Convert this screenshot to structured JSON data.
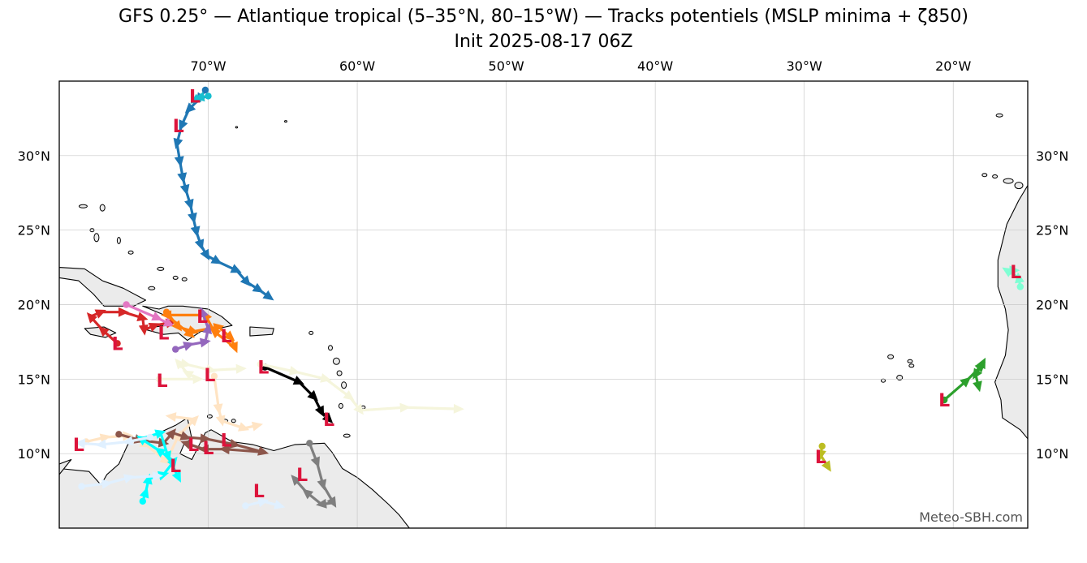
{
  "title_line1": "GFS 0.25° — Atlantique tropical (5–35°N, 80–15°W) — Tracks potentiels (MSLP minima + ζ850)",
  "title_line2": "Init 2025-08-17 06Z",
  "watermark": "Meteo-SBH.com",
  "colors": {
    "land": "#ebebeb",
    "coast": "#000000",
    "grid": "#c8c8c8",
    "low_marker": "#dc143c"
  },
  "map": {
    "lon_range": [
      -80,
      -15
    ],
    "lat_range": [
      5,
      35
    ],
    "low_symbol": "L",
    "lon_ticks": [
      {
        "value": -70,
        "label": "70°W"
      },
      {
        "value": -60,
        "label": "60°W"
      },
      {
        "value": -50,
        "label": "50°W"
      },
      {
        "value": -40,
        "label": "40°W"
      },
      {
        "value": -30,
        "label": "30°W"
      },
      {
        "value": -20,
        "label": "20°W"
      }
    ],
    "lat_ticks": [
      {
        "value": 10,
        "label": "10°N"
      },
      {
        "value": 15,
        "label": "15°N"
      },
      {
        "value": 20,
        "label": "20°N"
      },
      {
        "value": 25,
        "label": "25°N"
      },
      {
        "value": 30,
        "label": "30°N"
      }
    ]
  },
  "chart_data": {
    "type": "map",
    "grid": true,
    "tracks": [
      {
        "color": "#1f77b4",
        "points": [
          [
            -70.2,
            34.4
          ],
          [
            -70.6,
            33.8
          ],
          [
            -71.3,
            33.1
          ],
          [
            -71.8,
            32.0
          ],
          [
            -72.1,
            30.8
          ],
          [
            -71.9,
            29.6
          ],
          [
            -71.7,
            28.5
          ],
          [
            -71.5,
            27.7
          ],
          [
            -71.2,
            26.7
          ],
          [
            -71.0,
            25.8
          ],
          [
            -70.8,
            24.9
          ],
          [
            -70.5,
            24.0
          ],
          [
            -70.1,
            23.3
          ],
          [
            -69.4,
            22.9
          ],
          [
            -68.1,
            22.3
          ],
          [
            -67.4,
            21.5
          ],
          [
            -66.6,
            21.0
          ],
          [
            -65.9,
            20.5
          ]
        ]
      },
      {
        "color": "#17becf",
        "points": [
          [
            -70.0,
            34.0
          ],
          [
            -70.6,
            33.9
          ],
          [
            -70.9,
            33.7
          ]
        ]
      },
      {
        "color": "#d62728",
        "points": [
          [
            -76.1,
            17.4
          ],
          [
            -77.1,
            18.3
          ],
          [
            -77.9,
            19.2
          ],
          [
            -77.2,
            19.5
          ],
          [
            -75.7,
            19.5
          ],
          [
            -74.4,
            19.1
          ],
          [
            -74.3,
            18.3
          ],
          [
            -73.6,
            18.6
          ],
          [
            -72.5,
            18.8
          ]
        ]
      },
      {
        "color": "#e377c2",
        "points": [
          [
            -75.5,
            20.0
          ],
          [
            -73.4,
            19.1
          ],
          [
            -72.6,
            18.7
          ]
        ]
      },
      {
        "color": "#ff7f0e",
        "points": [
          [
            -72.8,
            19.5
          ],
          [
            -72.0,
            18.5
          ],
          [
            -71.0,
            18.2
          ],
          [
            -69.3,
            18.5
          ],
          [
            -68.5,
            17.8
          ],
          [
            -68.2,
            17.1
          ],
          [
            -69.6,
            18.2
          ],
          [
            -70.2,
            19.3
          ],
          [
            -72.8,
            19.3
          ],
          [
            -71.2,
            18.0
          ]
        ]
      },
      {
        "color": "#9467bd",
        "points": [
          [
            -72.2,
            17.0
          ],
          [
            -71.3,
            17.3
          ],
          [
            -70.2,
            17.5
          ],
          [
            -70.0,
            18.4
          ],
          [
            -70.4,
            19.5
          ]
        ]
      },
      {
        "color": "#000000",
        "points": [
          [
            -66.2,
            15.8
          ],
          [
            -63.9,
            14.8
          ],
          [
            -62.9,
            13.8
          ],
          [
            -62.4,
            12.8
          ],
          [
            -61.9,
            12.3
          ]
        ]
      },
      {
        "color": "#f5f5dc",
        "points": [
          [
            -66.5,
            16.0
          ],
          [
            -64.2,
            15.5
          ],
          [
            -62.1,
            15.0
          ],
          [
            -60.5,
            13.8
          ],
          [
            -59.8,
            12.9
          ],
          [
            -56.8,
            13.1
          ],
          [
            -53.2,
            13.0
          ]
        ]
      },
      {
        "color": "#f5f5dc",
        "points": [
          [
            -73.3,
            15.0
          ],
          [
            -70.7,
            15.0
          ],
          [
            -71.4,
            15.4
          ],
          [
            -72.0,
            16.1
          ],
          [
            -71.5,
            16.0
          ],
          [
            -69.8,
            15.6
          ],
          [
            -67.8,
            15.7
          ]
        ]
      },
      {
        "color": "#ffe4c4",
        "points": [
          [
            -69.6,
            15.2
          ],
          [
            -69.3,
            13.0
          ],
          [
            -69.1,
            12.2
          ],
          [
            -67.6,
            11.7
          ],
          [
            -66.7,
            11.9
          ]
        ]
      },
      {
        "color": "#ffe4c4",
        "points": [
          [
            -78.2,
            10.8
          ],
          [
            -76.9,
            11.1
          ],
          [
            -75.4,
            11.2
          ],
          [
            -74.2,
            10.6
          ],
          [
            -72.8,
            9.5
          ],
          [
            -72.0,
            11.2
          ],
          [
            -70.9,
            12.3
          ],
          [
            -72.5,
            12.5
          ]
        ]
      },
      {
        "color": "#8c564b",
        "points": [
          [
            -76.0,
            11.3
          ],
          [
            -74.6,
            10.9
          ],
          [
            -73.0,
            10.7
          ],
          [
            -72.4,
            11.4
          ],
          [
            -71.5,
            11.1
          ],
          [
            -70.2,
            11.0
          ],
          [
            -68.2,
            10.6
          ],
          [
            -66.3,
            10.1
          ],
          [
            -68.9,
            10.3
          ],
          [
            -70.3,
            10.3
          ],
          [
            -71.5,
            10.7
          ]
        ]
      },
      {
        "color": "#00ffff",
        "points": [
          [
            -74.4,
            6.8
          ],
          [
            -74.2,
            7.4
          ],
          [
            -74.0,
            8.3
          ],
          [
            -73.0,
            8.6
          ],
          [
            -72.3,
            9.5
          ],
          [
            -73.3,
            10.2
          ],
          [
            -74.5,
            11.0
          ],
          [
            -73.2,
            11.4
          ],
          [
            -72.7,
            9.8
          ],
          [
            -72.0,
            8.4
          ]
        ]
      },
      {
        "color": "#e0f0ff",
        "points": [
          [
            -78.5,
            7.8
          ],
          [
            -76.8,
            8.0
          ],
          [
            -75.3,
            8.4
          ],
          [
            -73.4,
            8.5
          ]
        ]
      },
      {
        "color": "#e0f0ff",
        "points": [
          [
            -73.9,
            11.1
          ],
          [
            -75.4,
            10.8
          ],
          [
            -77.2,
            10.6
          ],
          [
            -78.6,
            10.7
          ]
        ]
      },
      {
        "color": "#e0f0ff",
        "points": [
          [
            -67.5,
            6.5
          ],
          [
            -66.3,
            6.8
          ],
          [
            -65.2,
            6.5
          ]
        ]
      },
      {
        "color": "#7f7f7f",
        "points": [
          [
            -63.2,
            10.7
          ],
          [
            -62.7,
            9.4
          ],
          [
            -62.3,
            7.9
          ],
          [
            -61.6,
            6.7
          ],
          [
            -62.4,
            6.6
          ],
          [
            -63.4,
            7.4
          ],
          [
            -64.2,
            8.3
          ]
        ]
      },
      {
        "color": "#bcbd22",
        "points": [
          [
            -28.8,
            10.5
          ],
          [
            -28.9,
            9.9
          ],
          [
            -28.4,
            9.1
          ]
        ]
      },
      {
        "color": "#2ca02c",
        "points": [
          [
            -20.6,
            13.6
          ],
          [
            -19.1,
            14.9
          ],
          [
            -18.1,
            15.9
          ],
          [
            -18.0,
            16.1
          ],
          [
            -18.5,
            15.3
          ],
          [
            -18.3,
            14.5
          ]
        ]
      },
      {
        "color": "#7fffd4",
        "points": [
          [
            -15.5,
            21.2
          ],
          [
            -15.6,
            21.8
          ],
          [
            -16.4,
            22.3
          ],
          [
            -15.9,
            22.3
          ]
        ]
      }
    ],
    "lows": [
      [
        -70.9,
        34.0
      ],
      [
        -72.0,
        32.0
      ],
      [
        -76.1,
        17.4
      ],
      [
        -73.0,
        18.1
      ],
      [
        -70.4,
        19.2
      ],
      [
        -68.8,
        17.9
      ],
      [
        -66.3,
        15.8
      ],
      [
        -69.9,
        15.3
      ],
      [
        -73.1,
        14.9
      ],
      [
        -66.6,
        7.5
      ],
      [
        -63.7,
        8.6
      ],
      [
        -61.9,
        12.3
      ],
      [
        -78.7,
        10.6
      ],
      [
        -71.0,
        10.6
      ],
      [
        -70.0,
        10.4
      ],
      [
        -68.8,
        10.9
      ],
      [
        -72.2,
        9.2
      ],
      [
        -28.9,
        9.8
      ],
      [
        -20.6,
        13.6
      ],
      [
        -15.8,
        22.2
      ]
    ]
  }
}
